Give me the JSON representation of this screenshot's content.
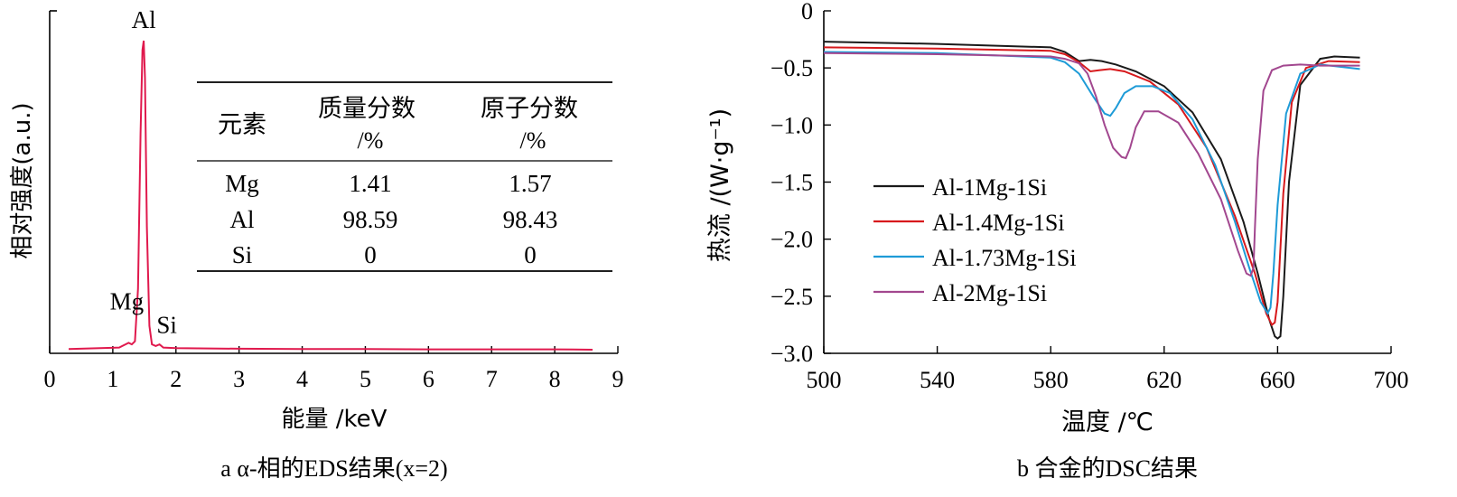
{
  "chart_data": [
    {
      "type": "line",
      "caption": "a α-相的EDS结果(x=2)",
      "xlabel": "能量 /keV",
      "ylabel": "相对强度(a.u.)",
      "xlim": [
        0,
        9
      ],
      "xticks": [
        "0",
        "1",
        "2",
        "3",
        "4",
        "5",
        "6",
        "7",
        "8",
        "9"
      ],
      "color": "#e0194d",
      "peak_labels": [
        {
          "text": "Al",
          "x": 1.49,
          "y": 1.0
        },
        {
          "text": "Mg",
          "x": 1.25,
          "y": 0.08
        },
        {
          "text": "Si",
          "x": 1.74,
          "y": 0.04
        }
      ],
      "series": [
        {
          "x": [
            0.3,
            0.8,
            1.1,
            1.2,
            1.25,
            1.3,
            1.35,
            1.4,
            1.44,
            1.47,
            1.49,
            1.51,
            1.54,
            1.58,
            1.62,
            1.68,
            1.74,
            1.8,
            2.0,
            3.0,
            4.0,
            5.0,
            6.0,
            7.0,
            8.0,
            8.6
          ],
          "y": [
            0.005,
            0.008,
            0.01,
            0.02,
            0.025,
            0.02,
            0.03,
            0.2,
            0.7,
            0.97,
            1.0,
            0.88,
            0.4,
            0.08,
            0.02,
            0.015,
            0.02,
            0.01,
            0.008,
            0.006,
            0.005,
            0.005,
            0.004,
            0.004,
            0.004,
            0.003
          ]
        }
      ],
      "table": {
        "headers": [
          "元素",
          "质量分数\n/%",
          "原子分数\n/%"
        ],
        "rows": [
          [
            "Mg",
            "1.41",
            "1.57"
          ],
          [
            "Al",
            "98.59",
            "98.43"
          ],
          [
            "Si",
            "0",
            "0"
          ]
        ]
      }
    },
    {
      "type": "line",
      "caption": "b 合金的DSC结果",
      "xlabel": "温度 /℃",
      "ylabel": "热流 /(W·g⁻¹)",
      "xlim": [
        500,
        700
      ],
      "ylim": [
        -3.0,
        0
      ],
      "xticks": [
        "500",
        "540",
        "580",
        "620",
        "660",
        "700"
      ],
      "yticks": [
        "0",
        "−0.5",
        "−1.0",
        "−1.5",
        "−2.0",
        "−2.5",
        "−3.0"
      ],
      "legend_position": "left-middle",
      "series": [
        {
          "name": "Al-1Mg-1Si",
          "color": "#1a1a1a",
          "x": [
            500,
            540,
            580,
            585,
            590,
            594,
            598,
            603,
            610,
            620,
            630,
            640,
            648,
            653,
            657,
            659,
            660,
            661,
            662,
            664,
            668,
            675,
            680,
            689
          ],
          "y": [
            -0.27,
            -0.29,
            -0.32,
            -0.36,
            -0.44,
            -0.43,
            -0.44,
            -0.47,
            -0.53,
            -0.66,
            -0.89,
            -1.3,
            -1.85,
            -2.3,
            -2.7,
            -2.85,
            -2.87,
            -2.85,
            -2.5,
            -1.5,
            -0.65,
            -0.42,
            -0.4,
            -0.41
          ]
        },
        {
          "name": "Al-1.4Mg-1Si",
          "color": "#d7191c",
          "x": [
            500,
            540,
            580,
            585,
            590,
            594,
            597,
            601,
            606,
            615,
            625,
            635,
            645,
            652,
            656,
            658,
            659,
            660,
            662,
            665,
            670,
            678,
            689
          ],
          "y": [
            -0.32,
            -0.33,
            -0.35,
            -0.38,
            -0.45,
            -0.53,
            -0.52,
            -0.51,
            -0.53,
            -0.62,
            -0.82,
            -1.2,
            -1.8,
            -2.3,
            -2.65,
            -2.75,
            -2.73,
            -2.55,
            -1.6,
            -0.8,
            -0.5,
            -0.44,
            -0.45
          ]
        },
        {
          "name": "Al-1.73Mg-1Si",
          "color": "#1e9bd7",
          "x": [
            500,
            540,
            580,
            585,
            590,
            595,
            599,
            601,
            603,
            606,
            610,
            616,
            622,
            630,
            638,
            645,
            650,
            654,
            656.5,
            657.5,
            658.5,
            660,
            663,
            668,
            675,
            689
          ],
          "y": [
            -0.36,
            -0.37,
            -0.41,
            -0.45,
            -0.55,
            -0.75,
            -0.9,
            -0.92,
            -0.85,
            -0.72,
            -0.66,
            -0.66,
            -0.72,
            -0.95,
            -1.35,
            -1.85,
            -2.25,
            -2.55,
            -2.65,
            -2.6,
            -2.3,
            -1.7,
            -0.9,
            -0.55,
            -0.47,
            -0.51
          ]
        },
        {
          "name": "Al-2Mg-1Si",
          "color": "#a2478f",
          "x": [
            500,
            540,
            580,
            585,
            590,
            593,
            596,
            599,
            602,
            605,
            606.5,
            608,
            610,
            613,
            618,
            625,
            632,
            640,
            646,
            649,
            650.5,
            651.5,
            652,
            653,
            655,
            658,
            662,
            668,
            675,
            689
          ],
          "y": [
            -0.37,
            -0.38,
            -0.4,
            -0.42,
            -0.46,
            -0.55,
            -0.75,
            -1.0,
            -1.2,
            -1.28,
            -1.29,
            -1.2,
            -1.02,
            -0.88,
            -0.88,
            -0.98,
            -1.25,
            -1.65,
            -2.1,
            -2.3,
            -2.32,
            -2.25,
            -1.9,
            -1.3,
            -0.7,
            -0.52,
            -0.48,
            -0.47,
            -0.48,
            -0.48
          ]
        }
      ]
    }
  ]
}
